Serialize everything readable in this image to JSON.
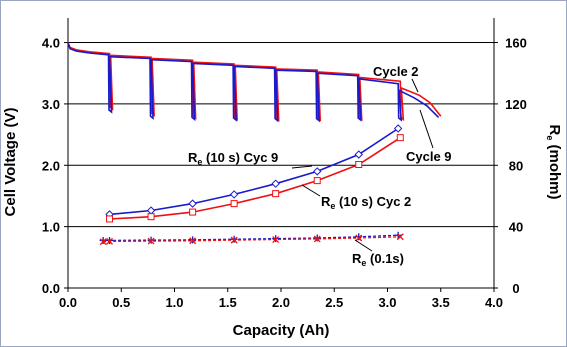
{
  "chart_data": {
    "type": "line",
    "xlabel": "Capacity (Ah)",
    "ylabel": "Cell Voltage (V)",
    "y2label_main": "R",
    "y2label_sub": "e",
    "y2label_rest": " (mohm)",
    "xlim": [
      0,
      4
    ],
    "ylim": [
      0,
      4.4
    ],
    "y2lim": [
      0,
      176
    ],
    "xticks": [
      "0.0",
      "0.5",
      "1.0",
      "1.5",
      "2.0",
      "2.5",
      "3.0",
      "3.5",
      "4.0"
    ],
    "yticks": [
      "0.0",
      "1.0",
      "2.0",
      "3.0",
      "4.0"
    ],
    "y2ticks": [
      "0",
      "40",
      "80",
      "120",
      "160"
    ],
    "grid": "horizontal",
    "annotations": {
      "cycle2": "Cycle 2",
      "cycle9": "Cycle 9",
      "re10s_cyc9_main": "R",
      "re10s_cyc9_sub": "e",
      "re10s_cyc9_rest": " (10 s) Cyc 9",
      "re10s_cyc2_main": "R",
      "re10s_cyc2_sub": "e",
      "re10s_cyc2_rest": " (10 s) Cyc 2",
      "re01s_main": "R",
      "re01s_sub": "e",
      "re01s_rest": " (0.1s)"
    },
    "colors": {
      "cycle2": "#ee1111",
      "cycle9": "#1a1acc",
      "grid": "#000000"
    },
    "voltage_series": [
      {
        "name": "Cycle 2",
        "color": "#ee1111",
        "pulses": [
          0.39,
          0.78,
          1.17,
          1.56,
          1.95,
          2.34,
          2.73,
          3.12
        ],
        "x": [
          0.0,
          0.02,
          0.08,
          0.2,
          0.39,
          0.4,
          0.78,
          0.79,
          1.17,
          1.18,
          1.56,
          1.57,
          1.95,
          1.96,
          2.34,
          2.35,
          2.73,
          2.74,
          3.12,
          3.13,
          3.3,
          3.4,
          3.5
        ],
        "y": [
          4.0,
          3.92,
          3.88,
          3.85,
          3.82,
          3.79,
          3.76,
          3.74,
          3.71,
          3.68,
          3.65,
          3.63,
          3.6,
          3.57,
          3.55,
          3.52,
          3.48,
          3.43,
          3.37,
          3.26,
          3.14,
          3.02,
          2.8
        ]
      },
      {
        "name": "Cycle 9",
        "color": "#1a1acc",
        "pulses": [
          0.38,
          0.77,
          1.16,
          1.55,
          1.94,
          2.33,
          2.72,
          3.1
        ],
        "x": [
          0.0,
          0.02,
          0.08,
          0.2,
          0.38,
          0.39,
          0.77,
          0.78,
          1.16,
          1.17,
          1.55,
          1.56,
          1.94,
          1.95,
          2.33,
          2.34,
          2.72,
          2.73,
          3.1,
          3.11,
          3.25,
          3.37,
          3.48
        ],
        "y": [
          3.99,
          3.9,
          3.86,
          3.83,
          3.8,
          3.77,
          3.74,
          3.72,
          3.69,
          3.66,
          3.63,
          3.61,
          3.58,
          3.55,
          3.53,
          3.5,
          3.46,
          3.41,
          3.33,
          3.22,
          3.1,
          2.97,
          2.78
        ]
      }
    ],
    "pulse_depth": {
      "Cycle 2": [
        2.95,
        2.85,
        2.8,
        2.78,
        2.77,
        2.77,
        2.78,
        2.78
      ],
      "Cycle 9": [
        2.9,
        2.8,
        2.78,
        2.77,
        2.76,
        2.76,
        2.77,
        2.77
      ]
    },
    "resistance_series": [
      {
        "name": "Re (10 s) Cyc 9",
        "color": "#1a1acc",
        "marker": "diamond",
        "x": [
          0.39,
          0.78,
          1.17,
          1.56,
          1.95,
          2.34,
          2.73,
          3.1
        ],
        "y": [
          48,
          50.5,
          55,
          61,
          68,
          76,
          87,
          104
        ]
      },
      {
        "name": "Re (10 s) Cyc 2",
        "color": "#ee1111",
        "marker": "square",
        "x": [
          0.39,
          0.78,
          1.17,
          1.56,
          1.95,
          2.34,
          2.73,
          3.12
        ],
        "y": [
          45,
          46.5,
          49.5,
          55,
          61.5,
          70,
          80.5,
          98
        ]
      },
      {
        "name": "Re (0.1s) Cyc 9",
        "color": "#1a1acc",
        "marker": "plus",
        "x": [
          0.33,
          0.39,
          0.78,
          1.17,
          1.56,
          1.95,
          2.34,
          2.73,
          3.1
        ],
        "y": [
          31,
          31,
          31.2,
          31.4,
          31.8,
          32.2,
          32.6,
          33.4,
          34.4
        ]
      },
      {
        "name": "Re (0.1s) Cyc 2",
        "color": "#ee1111",
        "marker": "x",
        "x": [
          0.33,
          0.39,
          0.78,
          1.17,
          1.56,
          1.95,
          2.34,
          2.73,
          3.12
        ],
        "y": [
          30.2,
          30.4,
          30.6,
          30.8,
          31.2,
          31.6,
          32,
          32.6,
          33.4
        ]
      }
    ]
  }
}
